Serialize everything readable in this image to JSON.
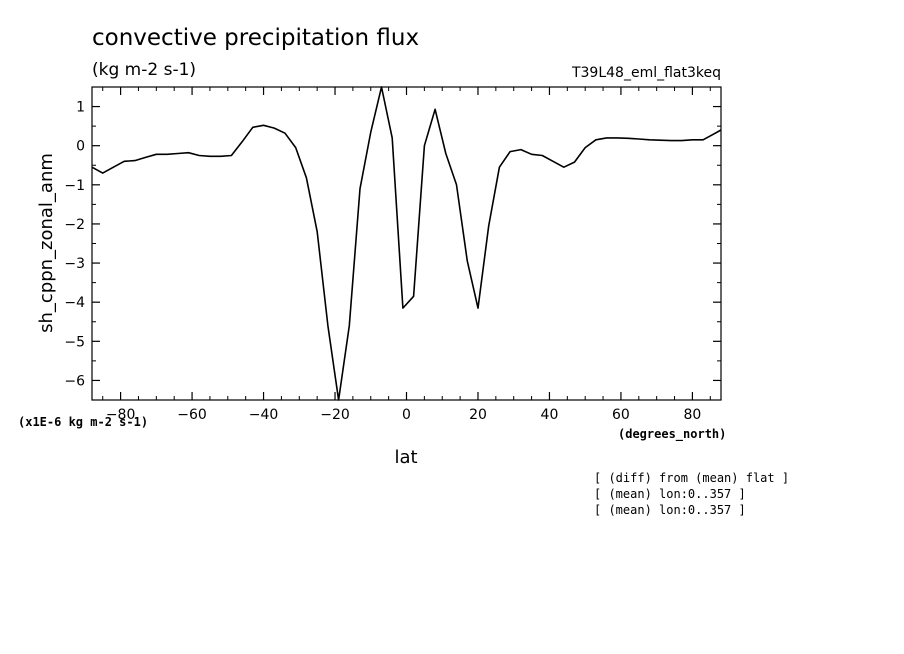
{
  "chart_data": {
    "type": "line",
    "title": "convective precipitation flux",
    "subtitle": "(kg m-2 s-1)",
    "run_label": "T39L48_eml_flat3keq",
    "xlabel": "lat",
    "xunits": "(degrees_north)",
    "ylabel": "sh_cppn_zonal_anm",
    "yscale_note": "(x1E-6 kg m-2 s-1)",
    "xlim": [
      -88,
      88
    ],
    "ylim": [
      -6.5,
      1.5
    ],
    "x_ticks": [
      -80,
      -60,
      -40,
      -20,
      0,
      20,
      40,
      60,
      80
    ],
    "x_tick_labels": [
      "-80",
      "-60",
      "-40",
      "-20",
      "0",
      "20",
      "40",
      "60",
      "80"
    ],
    "y_ticks": [
      1,
      0,
      -1,
      -2,
      -3,
      -4,
      -5,
      -6
    ],
    "y_tick_labels": [
      "1",
      "0",
      "-1",
      "-2",
      "-3",
      "-4",
      "-5",
      "-6"
    ],
    "grid": false,
    "notes": [
      "[ (diff) from (mean) flat ]",
      "[ (mean) lon:0..357 ]",
      "[ (mean) lon:0..357 ]"
    ],
    "series": [
      {
        "x": [
          -88,
          -85,
          -82,
          -79,
          -76,
          -73,
          -70,
          -67,
          -64,
          -61,
          -58,
          -55,
          -52,
          -49,
          -46,
          -43,
          -40,
          -37,
          -34,
          -31,
          -28,
          -25,
          -22,
          -19,
          -16,
          -13,
          -10,
          -7,
          -4,
          -1,
          2,
          5,
          8,
          11,
          14,
          17,
          20,
          23,
          26,
          29,
          32,
          35,
          38,
          41,
          44,
          47,
          50,
          53,
          56,
          59,
          62,
          65,
          68,
          71,
          74,
          77,
          80,
          83,
          86,
          88
        ],
        "y": [
          -0.55,
          -0.7,
          -0.55,
          -0.4,
          -0.38,
          -0.3,
          -0.22,
          -0.22,
          -0.2,
          -0.18,
          -0.25,
          -0.27,
          -0.27,
          -0.25,
          0.1,
          0.47,
          0.52,
          0.45,
          0.32,
          -0.05,
          -0.82,
          -2.2,
          -4.6,
          -6.5,
          -4.6,
          -1.1,
          0.35,
          1.5,
          0.2,
          -4.15,
          -3.85,
          0.0,
          0.93,
          -0.2,
          -1.0,
          -2.95,
          -4.15,
          -2.05,
          -0.55,
          -0.15,
          -0.1,
          -0.22,
          -0.25,
          -0.4,
          -0.55,
          -0.42,
          -0.05,
          0.15,
          0.2,
          0.2,
          0.19,
          0.17,
          0.15,
          0.14,
          0.13,
          0.13,
          0.15,
          0.15,
          0.3,
          0.4
        ]
      }
    ]
  }
}
